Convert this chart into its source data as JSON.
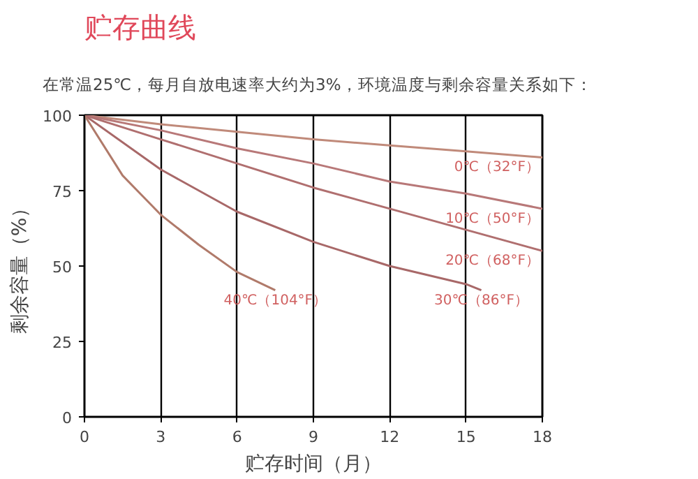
{
  "chart_data": {
    "type": "line",
    "title": "贮存曲线",
    "subtitle": "在常温25℃，每月自放电速率大约为3%，环境温度与剩余容量关系如下：",
    "xlabel": "贮存时间（月）",
    "ylabel": "剩余容量（%）",
    "xlim": [
      0,
      18
    ],
    "xticks": [
      0,
      3,
      6,
      9,
      12,
      15,
      18
    ],
    "ylim": [
      0,
      100
    ],
    "yticks": [
      0,
      25,
      50,
      75,
      100
    ],
    "grid": "x",
    "marker": "none",
    "line_style": "solid",
    "series": [
      {
        "name": "0℃（32°F）",
        "color": "#c08a7a",
        "x": [
          0,
          3,
          6,
          9,
          12,
          15,
          18
        ],
        "values": [
          100,
          97,
          94.5,
          92,
          90,
          88,
          86
        ]
      },
      {
        "name": "10℃（50°F）",
        "color": "#b87878",
        "x": [
          0,
          3,
          6,
          9,
          12,
          15,
          18
        ],
        "values": [
          100,
          95,
          89,
          84,
          78,
          74,
          69
        ]
      },
      {
        "name": "20℃（68°F）",
        "color": "#b06f6f",
        "x": [
          0,
          3,
          6,
          9,
          12,
          15,
          18
        ],
        "values": [
          100,
          92,
          84,
          76,
          69,
          62,
          55
        ]
      },
      {
        "name": "30℃（86°F）",
        "color": "#a86868",
        "x": [
          0,
          3,
          6,
          9,
          12,
          15,
          15.6
        ],
        "values": [
          100,
          82,
          68,
          58,
          50,
          44,
          42
        ]
      },
      {
        "name": "40℃（104°F）",
        "color": "#b07a6a",
        "x": [
          0,
          1.5,
          3,
          4.5,
          6,
          7.5
        ],
        "values": [
          100,
          80,
          67,
          57,
          48,
          42
        ]
      }
    ]
  }
}
